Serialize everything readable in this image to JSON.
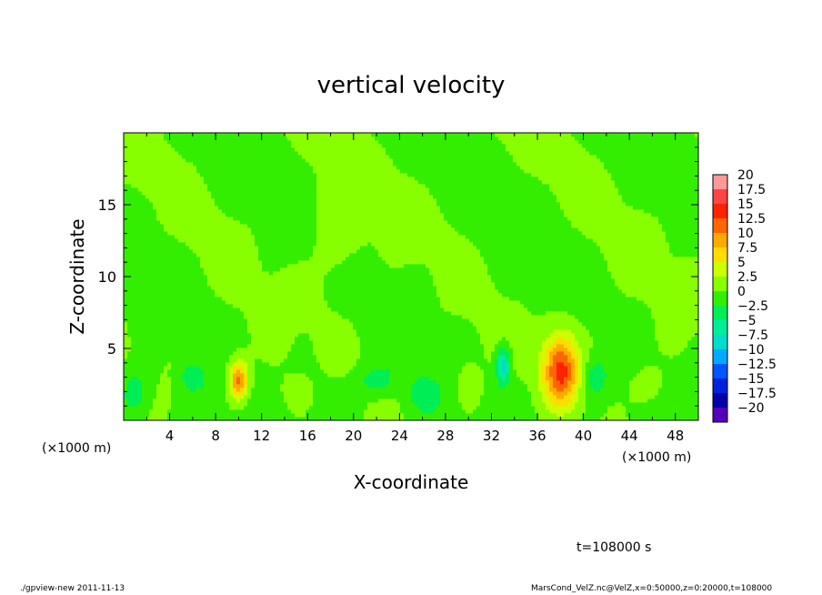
{
  "chart_data": {
    "type": "heatmap",
    "title": "vertical velocity",
    "xlabel": "X-coordinate",
    "ylabel": "Z-coordinate",
    "x_unit": "(×1000 m)",
    "x_unit_right": "(×1000 m)",
    "xlim": [
      0,
      50
    ],
    "ylim": [
      0,
      20
    ],
    "xticks": [
      4,
      8,
      12,
      16,
      20,
      24,
      28,
      32,
      36,
      40,
      44,
      48
    ],
    "yticks": [
      5,
      10,
      15
    ],
    "colorbar": {
      "levels": [
        -20,
        -17.5,
        -15,
        -12.5,
        -10,
        -7.5,
        -5,
        -2.5,
        0,
        2.5,
        5,
        7.5,
        10,
        12.5,
        15,
        17.5,
        20
      ],
      "labels": [
        "20",
        "17.5",
        "15",
        "12.5",
        "10",
        "7.5",
        "5",
        "2.5",
        "0",
        "−2.5",
        "−5",
        "−7.5",
        "−10",
        "−12.5",
        "−15",
        "−17.5",
        "−20"
      ],
      "colors": [
        "#ff9999",
        "#ff4444",
        "#ff2200",
        "#ff6600",
        "#ffaa00",
        "#ffdd00",
        "#ccff00",
        "#88ff00",
        "#33ee00",
        "#00ee55",
        "#00ee99",
        "#00ddcc",
        "#00aaff",
        "#0055ff",
        "#0022dd",
        "#0000aa",
        "#5500bb"
      ]
    },
    "background_value": 1.0,
    "features": [
      {
        "x": 10.0,
        "z": 2.8,
        "value": 12,
        "sx": 0.6,
        "sz": 1.0
      },
      {
        "x": 38.0,
        "z": 3.4,
        "value": 14,
        "sx": 1.1,
        "sz": 1.7
      },
      {
        "x": 33.0,
        "z": 3.8,
        "value": -8,
        "sx": 0.4,
        "sz": 0.9
      },
      {
        "x": 45.5,
        "z": 2.4,
        "value": 4,
        "sx": 1.0,
        "sz": 0.9
      },
      {
        "x": 15.0,
        "z": 2.0,
        "value": 3,
        "sx": 0.8,
        "sz": 0.7
      },
      {
        "x": 30.0,
        "z": 2.5,
        "value": 4,
        "sx": 0.7,
        "sz": 1.0
      },
      {
        "x": 6.0,
        "z": 3.0,
        "value": -3,
        "sx": 0.8,
        "sz": 0.8
      },
      {
        "x": 22.0,
        "z": 2.8,
        "value": -2.5,
        "sx": 1.2,
        "sz": 0.8
      },
      {
        "x": 41.0,
        "z": 3.0,
        "value": -3,
        "sx": 0.8,
        "sz": 1.0
      },
      {
        "x": 1.0,
        "z": 2.0,
        "value": -2.5,
        "sx": 0.8,
        "sz": 1.0
      },
      {
        "x": 18.5,
        "z": 13.0,
        "value": 2.5,
        "sx": 1.5,
        "sz": 2.5
      },
      {
        "x": 26.0,
        "z": 2.0,
        "value": -2,
        "sx": 1.0,
        "sz": 0.8
      }
    ]
  },
  "annotation": {
    "time": "t=108000 s"
  },
  "footer": {
    "left": "./gpview-new  2011-11-13",
    "right": "MarsCond_VelZ.nc@VelZ,x=0:50000,z=0:20000,t=108000"
  }
}
